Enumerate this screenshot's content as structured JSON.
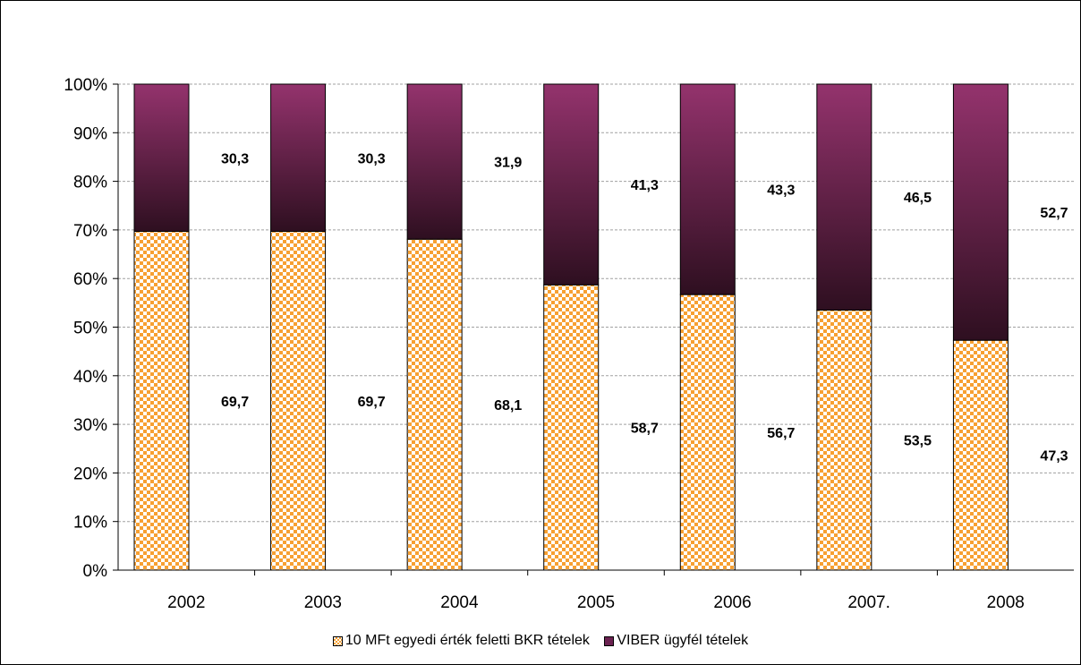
{
  "chart_data": {
    "type": "bar",
    "stacked": true,
    "percent_stacked": true,
    "categories": [
      "2002",
      "2003",
      "2004",
      "2005",
      "2006",
      "2007.",
      "2008"
    ],
    "series": [
      {
        "name": "10 MFt egyedi érték feletti BKR tételek",
        "values": [
          69.7,
          69.7,
          68.1,
          58.7,
          56.7,
          53.5,
          47.3
        ],
        "labels": [
          "69,7",
          "69,7",
          "68,1",
          "58,7",
          "56,7",
          "53,5",
          "47,3"
        ],
        "color": "#f7a032",
        "pattern": "checker"
      },
      {
        "name": "VIBER ügyfél tételek",
        "values": [
          30.3,
          30.3,
          31.9,
          41.3,
          43.3,
          46.5,
          52.7
        ],
        "labels": [
          "30,3",
          "30,3",
          "31,9",
          "41,3",
          "43,3",
          "46,5",
          "52,7"
        ],
        "color": "#94336d",
        "pattern": "gradient"
      }
    ],
    "ylim": [
      0,
      100
    ],
    "yticks": [
      "0%",
      "10%",
      "20%",
      "30%",
      "40%",
      "50%",
      "60%",
      "70%",
      "80%",
      "90%",
      "100%"
    ],
    "grid": true,
    "legend": "bottom",
    "title": "",
    "xlabel": "",
    "ylabel": ""
  }
}
